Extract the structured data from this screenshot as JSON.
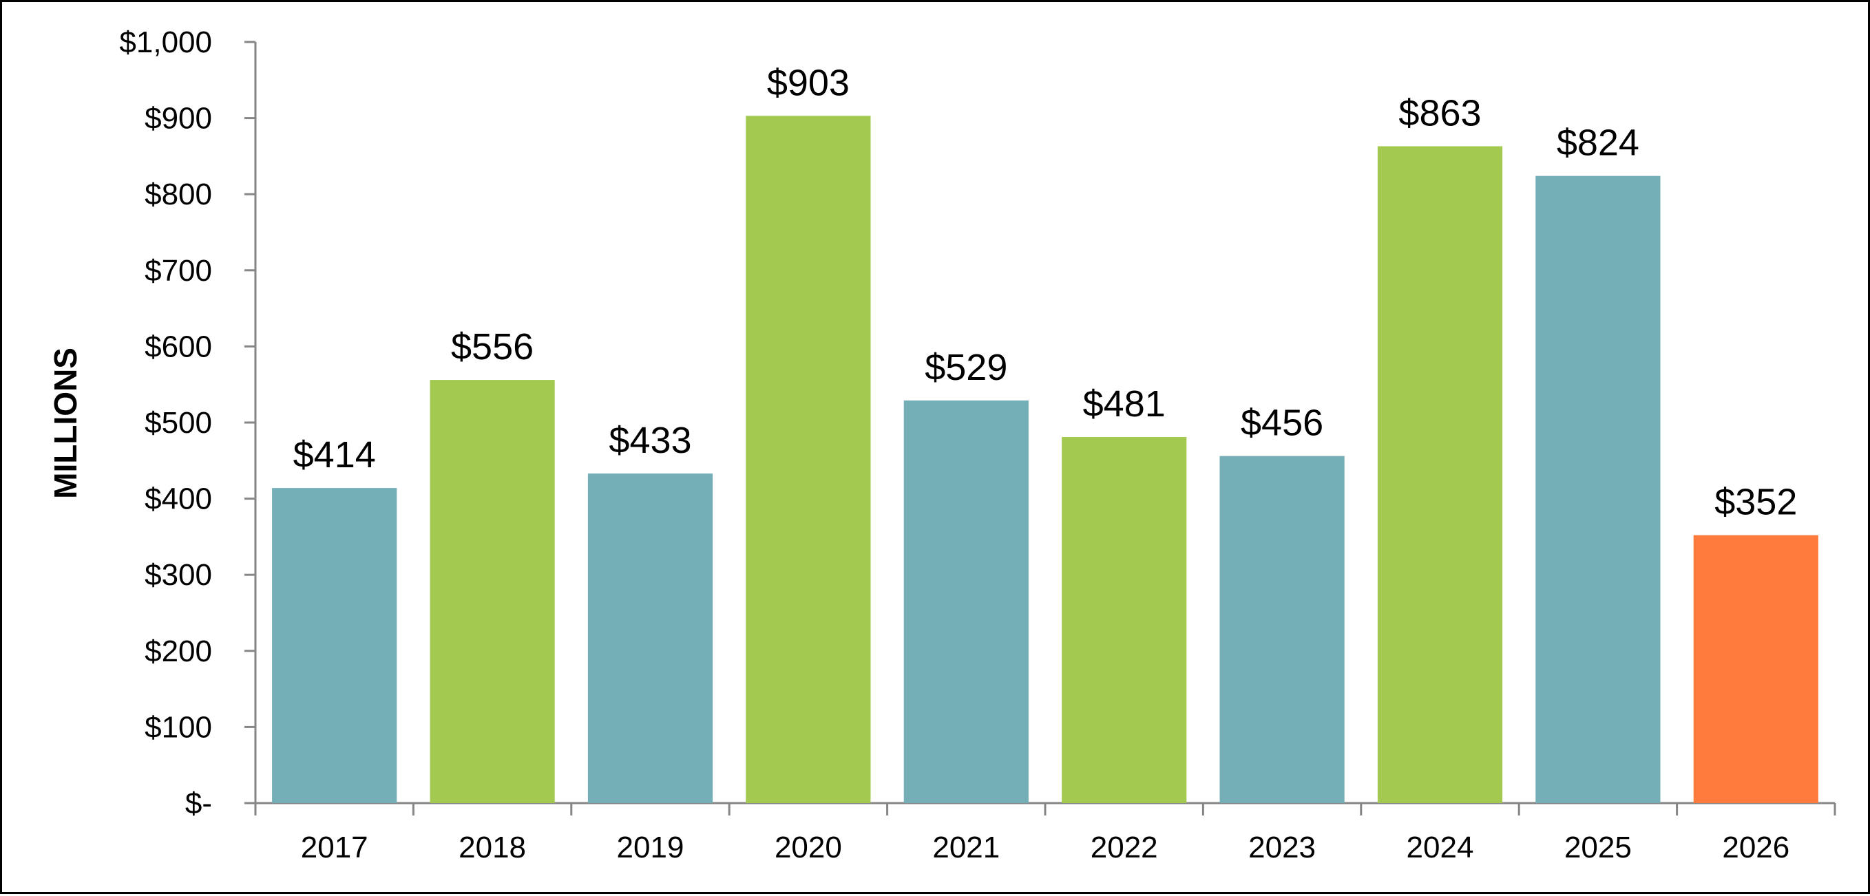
{
  "chart_data": {
    "type": "bar",
    "title": "",
    "xlabel": "",
    "ylabel": "MILLIONS",
    "categories": [
      "2017",
      "2018",
      "2019",
      "2020",
      "2021",
      "2022",
      "2023",
      "2024",
      "2025",
      "2026"
    ],
    "values": [
      414,
      556,
      433,
      903,
      529,
      481,
      456,
      863,
      824,
      352
    ],
    "data_labels": [
      "$414",
      "$556",
      "$433",
      "$903",
      "$529",
      "$481",
      "$456",
      "$863",
      "$824",
      "$352"
    ],
    "bar_colors": [
      "#74AEB7",
      "#A3C951",
      "#74AEB7",
      "#A3C951",
      "#74AEB7",
      "#A3C951",
      "#74AEB7",
      "#A3C951",
      "#74AEB7",
      "#FF7A3D"
    ],
    "ylim": [
      0,
      1000
    ],
    "yticks": [
      0,
      100,
      200,
      300,
      400,
      500,
      600,
      700,
      800,
      900,
      1000
    ],
    "ytick_labels": [
      "$-",
      "$100",
      "$200",
      "$300",
      "$400",
      "$500",
      "$600",
      "$700",
      "$800",
      "$900",
      "$1,000"
    ],
    "grid": false,
    "legend": "none"
  }
}
